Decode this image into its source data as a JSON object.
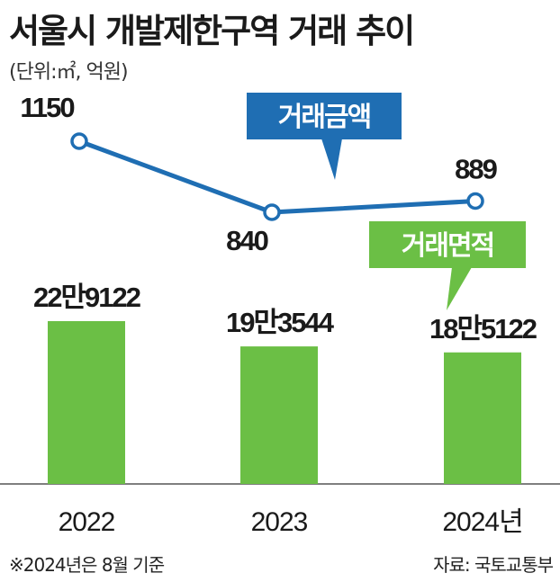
{
  "title": "서울시 개발제한구역 거래 추이",
  "subtitle": "(단위:㎡, 억원)",
  "footnote": "※2024년은 8월 기준",
  "source": "자료: 국토교통부",
  "colors": {
    "line": "#1f6eb3",
    "bar": "#6bbf45",
    "amount_tag": "#1f6eb3",
    "area_tag": "#6bbf45",
    "axis": "#555555",
    "text": "#1a1a1a"
  },
  "chart_data": {
    "type": "bar+line",
    "categories": [
      "2022",
      "2023",
      "2024년"
    ],
    "series": [
      {
        "name": "거래면적",
        "type": "bar",
        "values": [
          229122,
          193544,
          185122
        ],
        "labels": [
          "22만9122",
          "19만3544",
          "18만5122"
        ]
      },
      {
        "name": "거래금액",
        "type": "line",
        "values": [
          1150,
          840,
          889
        ],
        "labels": [
          "1150",
          "840",
          "889"
        ]
      }
    ],
    "grid": false
  }
}
